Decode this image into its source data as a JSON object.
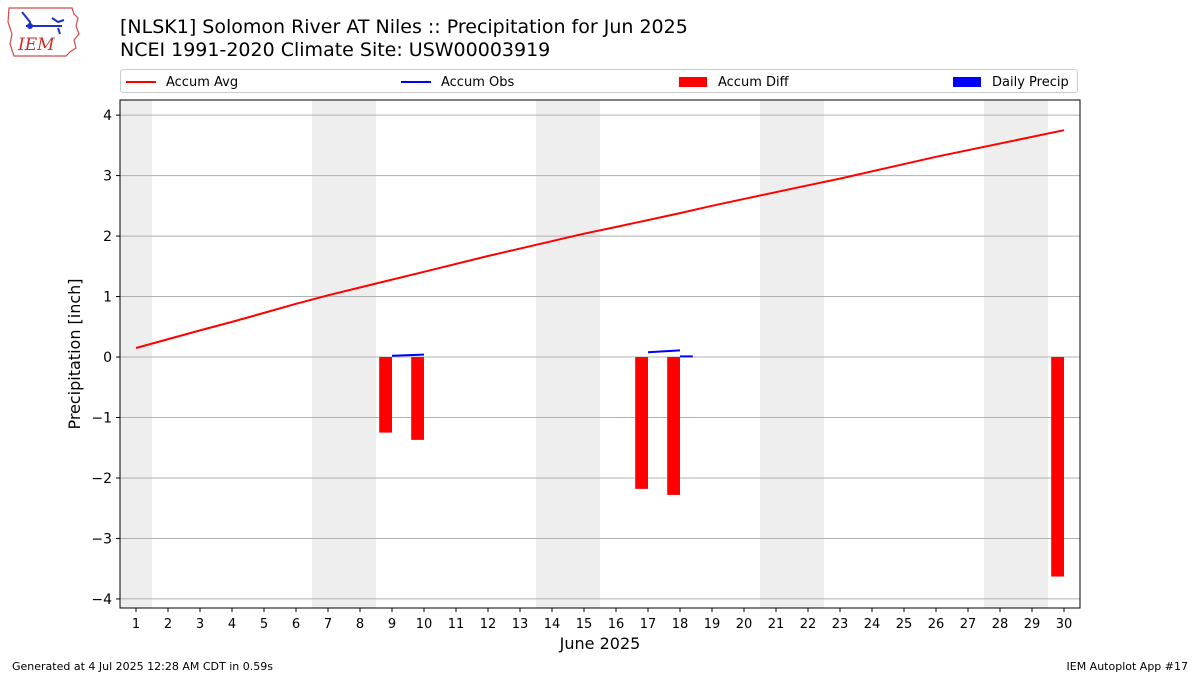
{
  "header": {
    "title_line1": "[NLSK1] Solomon River  AT Niles :: Precipitation for Jun 2025",
    "title_line2": "NCEI 1991-2020 Climate Site: USW00003919",
    "logo_text": "IEM"
  },
  "legend": {
    "position": "top, above plot",
    "items": [
      {
        "label": "Accum Avg",
        "color": "#ff0000",
        "kind": "line"
      },
      {
        "label": "Accum Obs",
        "color": "#0000ff",
        "kind": "line"
      },
      {
        "label": "Accum Diff",
        "color": "#ff0000",
        "kind": "bar"
      },
      {
        "label": "Daily Precip",
        "color": "#0000ff",
        "kind": "bar"
      }
    ]
  },
  "footer": {
    "left": "Generated at 4 Jul 2025 12:28 AM CDT in 0.59s",
    "right": "IEM Autoplot App #17"
  },
  "chart_data": {
    "type": "line",
    "xlabel": "June 2025",
    "ylabel": "Precipitation [inch]",
    "xlim": [
      0.5,
      30.5
    ],
    "ylim": [
      -4.15,
      4.25
    ],
    "x_ticks": [
      1,
      2,
      3,
      4,
      5,
      6,
      7,
      8,
      9,
      10,
      11,
      12,
      13,
      14,
      15,
      16,
      17,
      18,
      19,
      20,
      21,
      22,
      23,
      24,
      25,
      26,
      27,
      28,
      29,
      30
    ],
    "y_ticks": [
      -4,
      -3,
      -2,
      -1,
      0,
      1,
      2,
      3,
      4
    ],
    "y_tick_labels": [
      "−4",
      "−3",
      "−2",
      "−1",
      "0",
      "1",
      "2",
      "3",
      "4"
    ],
    "grid": "horizontal",
    "weekend_shading": [
      [
        0.5,
        1.5
      ],
      [
        6.5,
        8.5
      ],
      [
        13.5,
        15.5
      ],
      [
        20.5,
        22.5
      ],
      [
        27.5,
        29.5
      ]
    ],
    "shade_color": "#eeeeee",
    "series": [
      {
        "name": "Accum Avg",
        "kind": "line",
        "color": "#ff0000",
        "x": [
          1,
          3,
          4,
          5,
          6,
          7,
          10,
          12,
          15,
          16,
          18,
          19,
          22,
          23,
          26,
          30
        ],
        "values": [
          0.15,
          0.44,
          0.58,
          0.73,
          0.88,
          1.02,
          1.41,
          1.67,
          2.04,
          2.15,
          2.38,
          2.5,
          2.84,
          2.95,
          3.31,
          3.75
        ]
      },
      {
        "name": "Accum Obs",
        "kind": "segments",
        "color": "#0000ff",
        "segments": [
          {
            "x": [
              9.0,
              10.0
            ],
            "values": [
              0.02,
              0.04
            ]
          },
          {
            "x": [
              17.0,
              18.0
            ],
            "values": [
              0.08,
              0.11
            ]
          },
          {
            "x": [
              18.0,
              18.4
            ],
            "values": [
              0.01,
              0.01
            ]
          }
        ]
      },
      {
        "name": "Accum Diff",
        "kind": "bar",
        "color": "#ff0000",
        "x": [
          8.8,
          9.8,
          16.8,
          17.8,
          29.8
        ],
        "values": [
          -1.25,
          -1.37,
          -2.18,
          -2.28,
          -3.63
        ],
        "bar_width_days": 0.4
      },
      {
        "name": "Daily Precip",
        "kind": "bar",
        "color": "#0000ff",
        "x": [],
        "values": []
      }
    ]
  }
}
